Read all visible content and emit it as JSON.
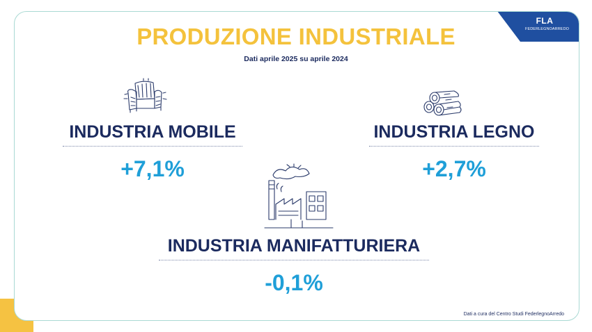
{
  "title": "PRODUZIONE INDUSTRIALE",
  "subtitle": "Dati aprile 2025 su aprile 2024",
  "logo": {
    "mark": "FLA",
    "sub": "FEDERLEGNOARREDO"
  },
  "sections": [
    {
      "label": "INDUSTRIA MOBILE",
      "value": "+7,1%",
      "icon": "armchair-icon"
    },
    {
      "label": "INDUSTRIA LEGNO",
      "value": "+2,7%",
      "icon": "wood-logs-icon"
    },
    {
      "label": "INDUSTRIA MANIFATTURIERA",
      "value": "-0,1%",
      "icon": "factory-icon"
    }
  ],
  "footnote": "Dati a cura del Centro Studi FederlegnoArredo",
  "colors": {
    "title": "#f4c23c",
    "label": "#1b2a5e",
    "value": "#1f9fd8",
    "logo_bg": "#1f4fa0",
    "border": "#a9d9d3",
    "corner": "#f5c242"
  }
}
